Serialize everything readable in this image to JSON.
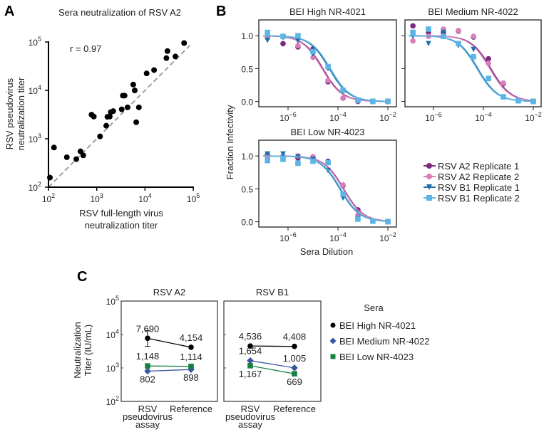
{
  "panels": {
    "a": "A",
    "b": "B",
    "c": "C"
  },
  "chart_data": [
    {
      "type": "scatter",
      "title": "Sera neutralization of RSV A2",
      "xlabel": [
        "RSV full-length virus",
        "neutralization titer"
      ],
      "ylabel": [
        "RSV pseudovirus",
        "neutralization titer"
      ],
      "xscale": "log",
      "yscale": "log",
      "xlim": [
        100,
        100000
      ],
      "ylim": [
        100,
        100000
      ],
      "ticks": [
        {
          "base": "10",
          "exp": "2"
        },
        {
          "base": "10",
          "exp": "3"
        },
        {
          "base": "10",
          "exp": "4"
        },
        {
          "base": "10",
          "exp": "5"
        }
      ],
      "annotation": "r = 0.97",
      "reference_line": "identity (y = x), dashed gray",
      "point_color": "#000000",
      "points": [
        [
          107,
          158
        ],
        [
          130,
          660
        ],
        [
          240,
          415
        ],
        [
          377,
          380
        ],
        [
          460,
          550
        ],
        [
          525,
          455
        ],
        [
          1170,
          1120
        ],
        [
          780,
          3150
        ],
        [
          870,
          2880
        ],
        [
          1570,
          1860
        ],
        [
          1660,
          2840
        ],
        [
          1860,
          2880
        ],
        [
          1950,
          3550
        ],
        [
          2190,
          3730
        ],
        [
          3290,
          4060
        ],
        [
          3470,
          7800
        ],
        [
          3770,
          7800
        ],
        [
          4350,
          4460
        ],
        [
          5700,
          13200
        ],
        [
          6130,
          9990
        ],
        [
          6570,
          2200
        ],
        [
          7460,
          4460
        ],
        [
          10800,
          22400
        ],
        [
          15400,
          26300
        ],
        [
          27700,
          46400
        ],
        [
          29100,
          64900
        ],
        [
          42600,
          50100
        ],
        [
          64500,
          95000
        ]
      ]
    },
    {
      "type": "line",
      "ylabel": "Fraction Infectivity",
      "xlabel": "Sera Dilution",
      "xscale": "log",
      "x_ticks": [
        {
          "base": "10",
          "exp": "−6"
        },
        {
          "base": "10",
          "exp": "−4"
        },
        {
          "base": "10",
          "exp": "−2"
        }
      ],
      "y_ticks": [
        "0.0",
        "0.5",
        "1.0"
      ],
      "ylim": [
        -0.08,
        1.24
      ],
      "dilutions": [
        1.5e-07,
        6.3e-07,
        2.5e-06,
        1e-05,
        4e-05,
        0.00016,
        0.00063,
        0.0025,
        0.01
      ],
      "legend": [
        {
          "name": "RSV A2 Replicate 1",
          "color": "#7b2a7f",
          "marker": "circle"
        },
        {
          "name": "RSV A2 Replicate 2",
          "color": "#d77fb8",
          "marker": "hexagon"
        },
        {
          "name": "RSV B1 Replicate 1",
          "color": "#1f6fa8",
          "marker": "triangle-down"
        },
        {
          "name": "RSV B1 Replicate 2",
          "color": "#5bb5e6",
          "marker": "square"
        }
      ],
      "legend_position": "right of lower panel",
      "subplots": [
        {
          "title": "BEI High NR-4021",
          "ic50": [
            2.5e-05,
            2.3e-05,
            4.5e-05,
            5e-05
          ],
          "values": [
            [
              0.97,
              0.88,
              0.83,
              0.8,
              0.3,
              0.05,
              0,
              0,
              0
            ],
            [
              0.99,
              0.99,
              0.85,
              0.67,
              0.32,
              0.05,
              0.01,
              0,
              0
            ],
            [
              0.93,
              0.97,
              0.92,
              0.72,
              0.5,
              0.15,
              0.01,
              0,
              0
            ],
            [
              1.05,
              0.99,
              1.0,
              0.76,
              0.53,
              0.17,
              0.02,
              0,
              0
            ]
          ]
        },
        {
          "title": "BEI Medium NR-4022",
          "ic50": [
            0.0002,
            0.00018,
            6e-05,
            5.5e-05
          ],
          "values": [
            [
              1.15,
              1.05,
              1.05,
              1.07,
              0.98,
              0.65,
              0.27,
              0.02,
              0
            ],
            [
              0.92,
              0.99,
              1.1,
              1.08,
              0.99,
              0.58,
              0.28,
              0.02,
              0
            ],
            [
              0.99,
              0.88,
              1.05,
              0.85,
              0.79,
              0.34,
              0.07,
              0.01,
              0
            ],
            [
              1.05,
              1.1,
              0.99,
              0.88,
              0.68,
              0.35,
              0.07,
              0.01,
              0
            ]
          ]
        },
        {
          "title": "BEI Low NR-4023",
          "ic50": [
            0.00017,
            0.00016,
            0.00012,
            0.00013
          ],
          "values": [
            [
              1.02,
              1.0,
              0.97,
              0.97,
              0.92,
              0.55,
              0.18,
              0.01,
              0
            ],
            [
              0.99,
              1.0,
              1.0,
              0.99,
              0.9,
              0.56,
              0.1,
              0.01,
              0
            ],
            [
              1.03,
              1.03,
              0.99,
              0.95,
              0.78,
              0.36,
              0.05,
              0.01,
              0
            ],
            [
              0.93,
              0.95,
              0.89,
              0.92,
              0.9,
              0.42,
              0.04,
              0.01,
              0
            ]
          ]
        }
      ]
    },
    {
      "type": "line",
      "ylabel": [
        "Neutralization",
        "Titer (IU/mL)"
      ],
      "yscale": "log",
      "ylim": [
        100,
        100000
      ],
      "y_ticks": [
        {
          "base": "10",
          "exp": "2"
        },
        {
          "base": "10",
          "exp": "3"
        },
        {
          "base": "10",
          "exp": "4"
        },
        {
          "base": "10",
          "exp": "5"
        }
      ],
      "categories": [
        [
          "RSV",
          "pseudovirus",
          "assay"
        ],
        [
          "Reference"
        ]
      ],
      "legend_title": "Sera",
      "series": [
        {
          "name": "BEI High NR-4021",
          "color": "#000000",
          "marker": "circle"
        },
        {
          "name": "BEI Medium NR-4022",
          "color": "#3a55a4",
          "marker": "diamond"
        },
        {
          "name": "BEI Low NR-4023",
          "color": "#168040",
          "marker": "square"
        }
      ],
      "subplots": [
        {
          "title": "RSV A2",
          "values": [
            [
              7690,
              4154
            ],
            [
              802,
              898
            ],
            [
              1148,
              1114
            ]
          ],
          "labels": [
            [
              "7,690",
              "4,154"
            ],
            [
              "802",
              "898"
            ],
            [
              "1,148",
              "1,114"
            ]
          ],
          "error_high_pseudovirus": [
            4400,
            13000
          ]
        },
        {
          "title": "RSV B1",
          "values": [
            [
              4536,
              4408
            ],
            [
              1654,
              1005
            ],
            [
              1167,
              669
            ]
          ],
          "labels": [
            [
              "4,536",
              "4,408"
            ],
            [
              "1,654",
              "1,005"
            ],
            [
              "1,167",
              "669"
            ]
          ]
        }
      ]
    }
  ]
}
